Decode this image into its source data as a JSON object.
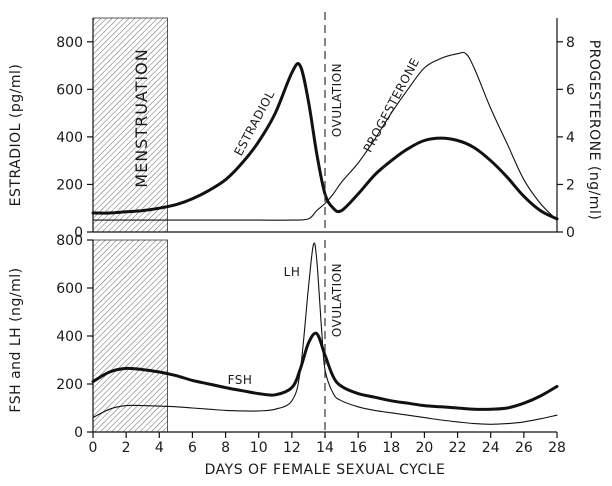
{
  "chart_data": [
    {
      "type": "line",
      "panel": "top",
      "xlabel": "",
      "ylabel_left": "ESTRADIOL (pg/ml)",
      "ylabel_right": "PROGESTERONE (ng/ml)",
      "xlim": [
        0,
        28
      ],
      "ylim_left": [
        0,
        900
      ],
      "ylim_right": [
        0,
        9
      ],
      "y_ticks_left": [
        0,
        200,
        400,
        600,
        800
      ],
      "y_ticks_right": [
        0,
        2,
        4,
        6,
        8
      ],
      "grid": false,
      "shaded_region": {
        "x": [
          0,
          4.5
        ],
        "label": "MENSTRUATION"
      },
      "annotations": [
        {
          "text": "OVULATION",
          "x": 14
        }
      ],
      "series": [
        {
          "name": "ESTRADIOL",
          "axis": "left",
          "line": "thick",
          "x": [
            0,
            1,
            2,
            3,
            4,
            5,
            6,
            7,
            8,
            9,
            10,
            11,
            12,
            12.5,
            13,
            13.5,
            14,
            14.5,
            15,
            16,
            17,
            18,
            19,
            20,
            21,
            22,
            23,
            24,
            25,
            26,
            27,
            28
          ],
          "y": [
            80,
            80,
            85,
            90,
            100,
            115,
            140,
            175,
            220,
            290,
            380,
            500,
            670,
            700,
            550,
            330,
            160,
            100,
            90,
            160,
            240,
            300,
            350,
            385,
            395,
            385,
            355,
            300,
            230,
            150,
            90,
            55
          ]
        },
        {
          "name": "PROGESTERONE",
          "axis": "right",
          "line": "thin",
          "x": [
            0,
            2,
            4,
            6,
            8,
            10,
            12,
            13,
            13.5,
            14,
            14.5,
            15,
            16,
            17,
            18,
            19,
            20,
            21,
            22,
            22.5,
            23,
            24,
            25,
            26,
            27,
            28
          ],
          "y": [
            0.5,
            0.5,
            0.5,
            0.5,
            0.5,
            0.5,
            0.5,
            0.55,
            0.9,
            1.2,
            1.6,
            2.1,
            2.9,
            3.9,
            5.0,
            6.0,
            6.9,
            7.3,
            7.5,
            7.5,
            6.9,
            5.2,
            3.7,
            2.2,
            1.2,
            0.5
          ]
        }
      ]
    },
    {
      "type": "line",
      "panel": "bottom",
      "xlabel": "DAYS OF FEMALE SEXUAL CYCLE",
      "ylabel": "FSH and LH (ng/ml)",
      "xlim": [
        0,
        28
      ],
      "ylim": [
        0,
        800
      ],
      "y_ticks": [
        0,
        200,
        400,
        600,
        800
      ],
      "x_ticks": [
        0,
        2,
        4,
        6,
        8,
        10,
        12,
        14,
        16,
        18,
        20,
        22,
        24,
        26,
        28
      ],
      "grid": false,
      "shaded_region": {
        "x": [
          0,
          4.5
        ]
      },
      "annotations": [
        {
          "text": "OVULATION",
          "x": 14
        }
      ],
      "series": [
        {
          "name": "FSH",
          "line": "thick",
          "x": [
            0,
            1,
            2,
            3,
            4,
            5,
            6,
            7,
            8,
            9,
            10,
            11,
            12,
            12.5,
            13,
            13.5,
            14,
            14.5,
            15,
            16,
            17,
            18,
            19,
            20,
            21,
            22,
            23,
            24,
            25,
            26,
            27,
            28
          ],
          "y": [
            210,
            250,
            265,
            260,
            250,
            235,
            215,
            200,
            185,
            172,
            160,
            155,
            185,
            260,
            370,
            410,
            320,
            230,
            190,
            160,
            145,
            130,
            120,
            110,
            105,
            100,
            95,
            95,
            100,
            120,
            150,
            190
          ]
        },
        {
          "name": "LH",
          "line": "thin",
          "x": [
            0,
            1,
            2,
            3,
            4,
            5,
            6,
            7,
            8,
            9,
            10,
            11,
            12,
            12.5,
            13,
            13.3,
            13.5,
            13.8,
            14,
            14.5,
            15,
            16,
            17,
            18,
            19,
            20,
            21,
            22,
            23,
            24,
            25,
            26,
            27,
            28
          ],
          "y": [
            60,
            95,
            110,
            110,
            108,
            105,
            100,
            95,
            90,
            88,
            88,
            95,
            130,
            250,
            600,
            780,
            720,
            420,
            260,
            160,
            130,
            105,
            90,
            80,
            70,
            60,
            50,
            42,
            35,
            32,
            35,
            42,
            55,
            70
          ]
        }
      ]
    }
  ]
}
